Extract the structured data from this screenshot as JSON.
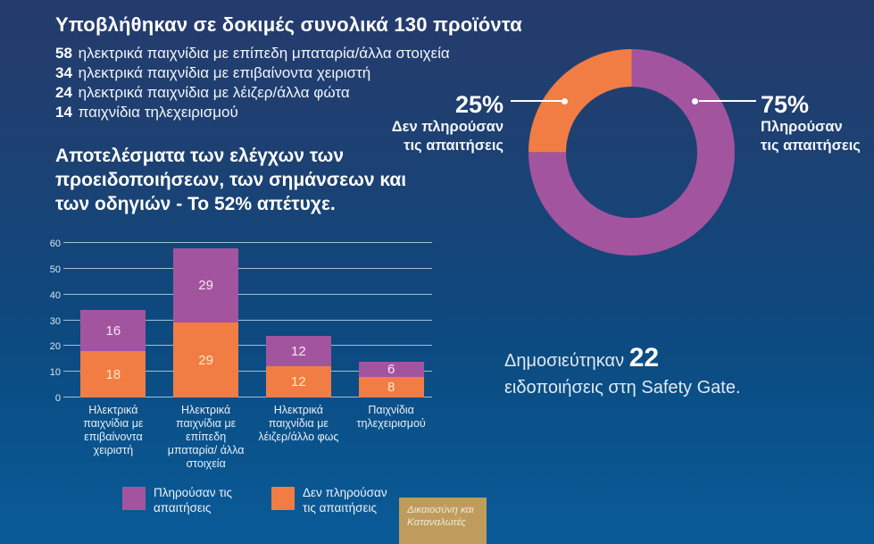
{
  "colors": {
    "purple": "#a2559e",
    "orange": "#f17d44",
    "background_top": "#253b6c",
    "background_bottom": "#095b98",
    "gridline": "#b9d5e9",
    "badge_bg": "#bf9c5c",
    "leader_line": "#ffffff"
  },
  "header": {
    "title": "Υποβλήθηκαν σε δοκιμές συνολικά 130 προϊόντα",
    "breakdown": [
      {
        "count": "58",
        "label": "ηλεκτρικά παιχνίδια με επίπεδη μπαταρία/άλλα στοιχεία"
      },
      {
        "count": "34",
        "label": "ηλεκτρικά παιχνίδια με επιβαίνοντα χειριστή"
      },
      {
        "count": "24",
        "label": "ηλεκτρικά παιχνίδια με λέιζερ/άλλα φώτα"
      },
      {
        "count": "14",
        "label": "παιχνίδια τηλεχειρισμού"
      }
    ]
  },
  "results_heading": "Αποτελέσματα των ελέγχων των προειδοποιήσεων, των σημάνσεων και των οδηγιών - Το 52% απέτυχε.",
  "donut": {
    "pass_pct": "75%",
    "pass_label_line1": "Πληρούσαν",
    "pass_label_line2": "τις απαιτήσεις",
    "fail_pct": "25%",
    "fail_label_line1": "Δεν πληρούσαν",
    "fail_label_line2": "τις απαιτήσεις"
  },
  "chart_data": [
    {
      "type": "pie",
      "donut": true,
      "labels": [
        "Πληρούσαν τις απαιτήσεις",
        "Δεν πληρούσαν τις απαιτήσεις"
      ],
      "values": [
        75,
        25
      ],
      "unit": "%",
      "colors": [
        "#a2559e",
        "#f17d44"
      ],
      "start": "top, pass segment clockwise"
    },
    {
      "type": "bar",
      "stacked": true,
      "title": "Αποτελέσματα των ελέγχων των προειδοποιήσεων, των σημάνσεων και των οδηγιών - Το 52% απέτυχε.",
      "categories": [
        "Ηλεκτρικά παιχνίδια με επιβαίνοντα χειριστή",
        "Ηλεκτρικά παιχνίδια με επίπεδη μπαταρία/ άλλα στοιχεία",
        "Ηλεκτρικά παιχνίδια με λέιζερ/άλλο φως",
        "Παιχνίδια τηλεχειρισμού"
      ],
      "series": [
        {
          "name": "Δεν πληρούσαν τις απαιτήσεις",
          "color": "#f17d44",
          "values": [
            18,
            29,
            12,
            8
          ]
        },
        {
          "name": "Πληρούσαν τις απαιτήσεις",
          "color": "#a2559e",
          "values": [
            16,
            29,
            12,
            6
          ]
        }
      ],
      "xlabel": "",
      "ylabel": "",
      "ylim": [
        0,
        60
      ],
      "yticks": [
        0,
        10,
        20,
        30,
        40,
        50,
        60
      ],
      "grid": true,
      "legend_position": "bottom"
    }
  ],
  "legend": [
    {
      "label": "Πληρούσαν τις απαιτήσεις",
      "color": "#a2559e"
    },
    {
      "label": "Δεν πληρούσαν τις απαιτήσεις",
      "color": "#f17d44"
    }
  ],
  "notifications": {
    "prefix": "Δημοσιεύτηκαν",
    "count": "22",
    "suffix": "ειδοποιήσεις στη Safety Gate."
  },
  "badge": {
    "label": "Δικαιοσύνη και Καταναλωτές"
  }
}
